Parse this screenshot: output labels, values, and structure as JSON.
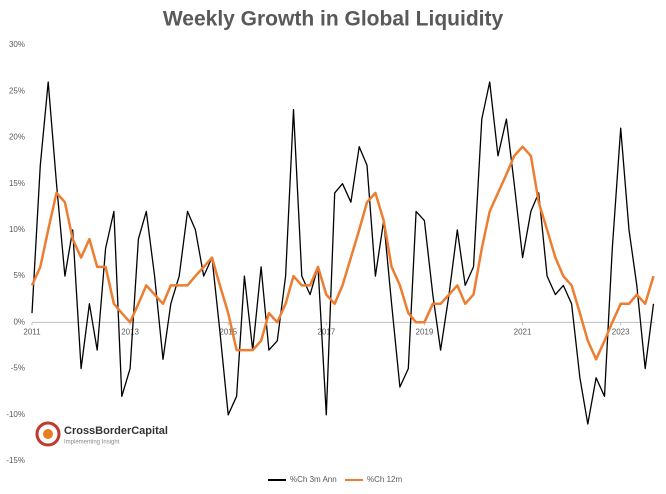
{
  "chart_data": {
    "type": "line",
    "title": "Weekly Growth in Global Liquidity",
    "x": [
      2011,
      2011.17,
      2011.33,
      2011.5,
      2011.67,
      2011.83,
      2012,
      2012.17,
      2012.33,
      2012.5,
      2012.67,
      2012.83,
      2013,
      2013.17,
      2013.33,
      2013.5,
      2013.67,
      2013.83,
      2014,
      2014.17,
      2014.33,
      2014.5,
      2014.67,
      2014.83,
      2015,
      2015.17,
      2015.33,
      2015.5,
      2015.67,
      2015.83,
      2016,
      2016.17,
      2016.33,
      2016.5,
      2016.67,
      2016.83,
      2017,
      2017.17,
      2017.33,
      2017.5,
      2017.67,
      2017.83,
      2018,
      2018.17,
      2018.33,
      2018.5,
      2018.67,
      2018.83,
      2019,
      2019.17,
      2019.33,
      2019.5,
      2019.67,
      2019.83,
      2020,
      2020.17,
      2020.33,
      2020.5,
      2020.67,
      2020.83,
      2021,
      2021.17,
      2021.33,
      2021.5,
      2021.67,
      2021.83,
      2022,
      2022.17,
      2022.33,
      2022.5,
      2022.67,
      2022.83,
      2023,
      2023.17,
      2023.33,
      2023.5,
      2023.67
    ],
    "series": [
      {
        "name": "%Ch 3m Ann",
        "color": "#000000",
        "values": [
          1,
          17,
          26,
          15,
          5,
          10,
          -5,
          2,
          -3,
          8,
          12,
          -8,
          -5,
          9,
          12,
          5,
          -4,
          2,
          5,
          12,
          10,
          5,
          7,
          -1,
          -10,
          -8,
          5,
          -3,
          6,
          -3,
          -2,
          5,
          23,
          5,
          3,
          6,
          -10,
          14,
          15,
          13,
          19,
          17,
          5,
          11,
          2,
          -7,
          -5,
          12,
          11,
          3,
          -3,
          3,
          10,
          4,
          6,
          22,
          26,
          18,
          22,
          15,
          7,
          12,
          14,
          5,
          3,
          4,
          2,
          -6,
          -11,
          -6,
          -8,
          8,
          21,
          10,
          4,
          -5,
          2
        ]
      },
      {
        "name": "%Ch 12m",
        "color": "#ed7d31",
        "values": [
          4,
          6,
          10,
          14,
          13,
          9,
          7,
          9,
          6,
          6,
          2,
          1,
          0,
          2,
          4,
          3,
          2,
          4,
          4,
          4,
          5,
          6,
          7,
          4,
          1,
          -3,
          -3,
          -3,
          -2,
          1,
          0,
          2,
          5,
          4,
          4,
          6,
          3,
          2,
          4,
          7,
          10,
          13,
          14,
          11,
          6,
          4,
          1,
          0,
          0,
          2,
          2,
          3,
          4,
          2,
          3,
          8,
          12,
          14,
          16,
          18,
          19,
          18,
          13,
          10,
          7,
          5,
          4,
          1,
          -2,
          -4,
          -2,
          0,
          2,
          2,
          3,
          2,
          5
        ]
      }
    ],
    "xlim": [
      2011,
      2023.7
    ],
    "xticks": [
      2011,
      2013,
      2015,
      2017,
      2019,
      2021,
      2023
    ],
    "ylim": [
      -15,
      30
    ],
    "yticks": [
      {
        "value": -15,
        "label": "-15%"
      },
      {
        "value": -10,
        "label": "-10%"
      },
      {
        "value": -5,
        "label": "-5%"
      },
      {
        "value": 0,
        "label": "0%"
      },
      {
        "value": 5,
        "label": "5%"
      },
      {
        "value": 10,
        "label": "10%"
      },
      {
        "value": 15,
        "label": "15%"
      },
      {
        "value": 20,
        "label": "20%"
      },
      {
        "value": 25,
        "label": "25%"
      },
      {
        "value": 30,
        "label": "30%"
      }
    ],
    "grid": false,
    "legend": "bottom"
  },
  "logo": {
    "name": "CrossBorderCapital",
    "tagline": "Implementing Insight"
  }
}
